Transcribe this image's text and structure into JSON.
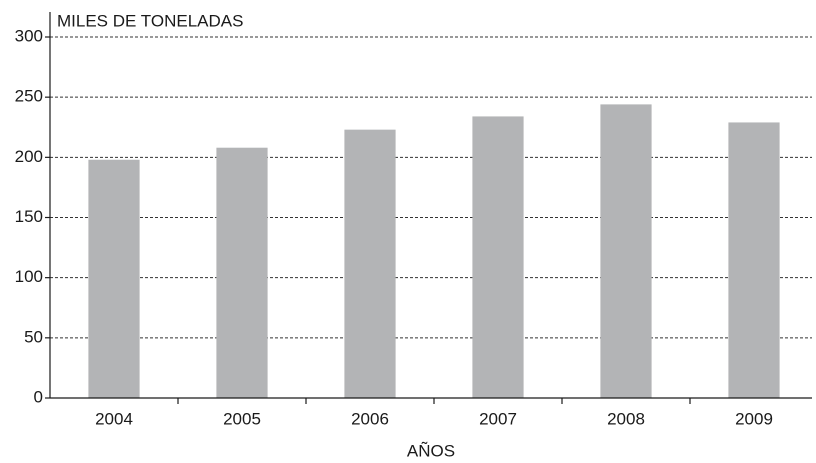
{
  "chart_data": {
    "type": "bar",
    "y_axis_label": "MILES DE TONELADAS",
    "x_axis_label": "AÑOS",
    "categories": [
      "2004",
      "2005",
      "2006",
      "2007",
      "2008",
      "2009"
    ],
    "values": [
      198,
      208,
      223,
      234,
      244,
      229
    ],
    "color": "#b3b4b6",
    "ylim": [
      0,
      300
    ],
    "yticks": [
      0,
      50,
      100,
      150,
      200,
      250,
      300
    ],
    "grid": true
  }
}
